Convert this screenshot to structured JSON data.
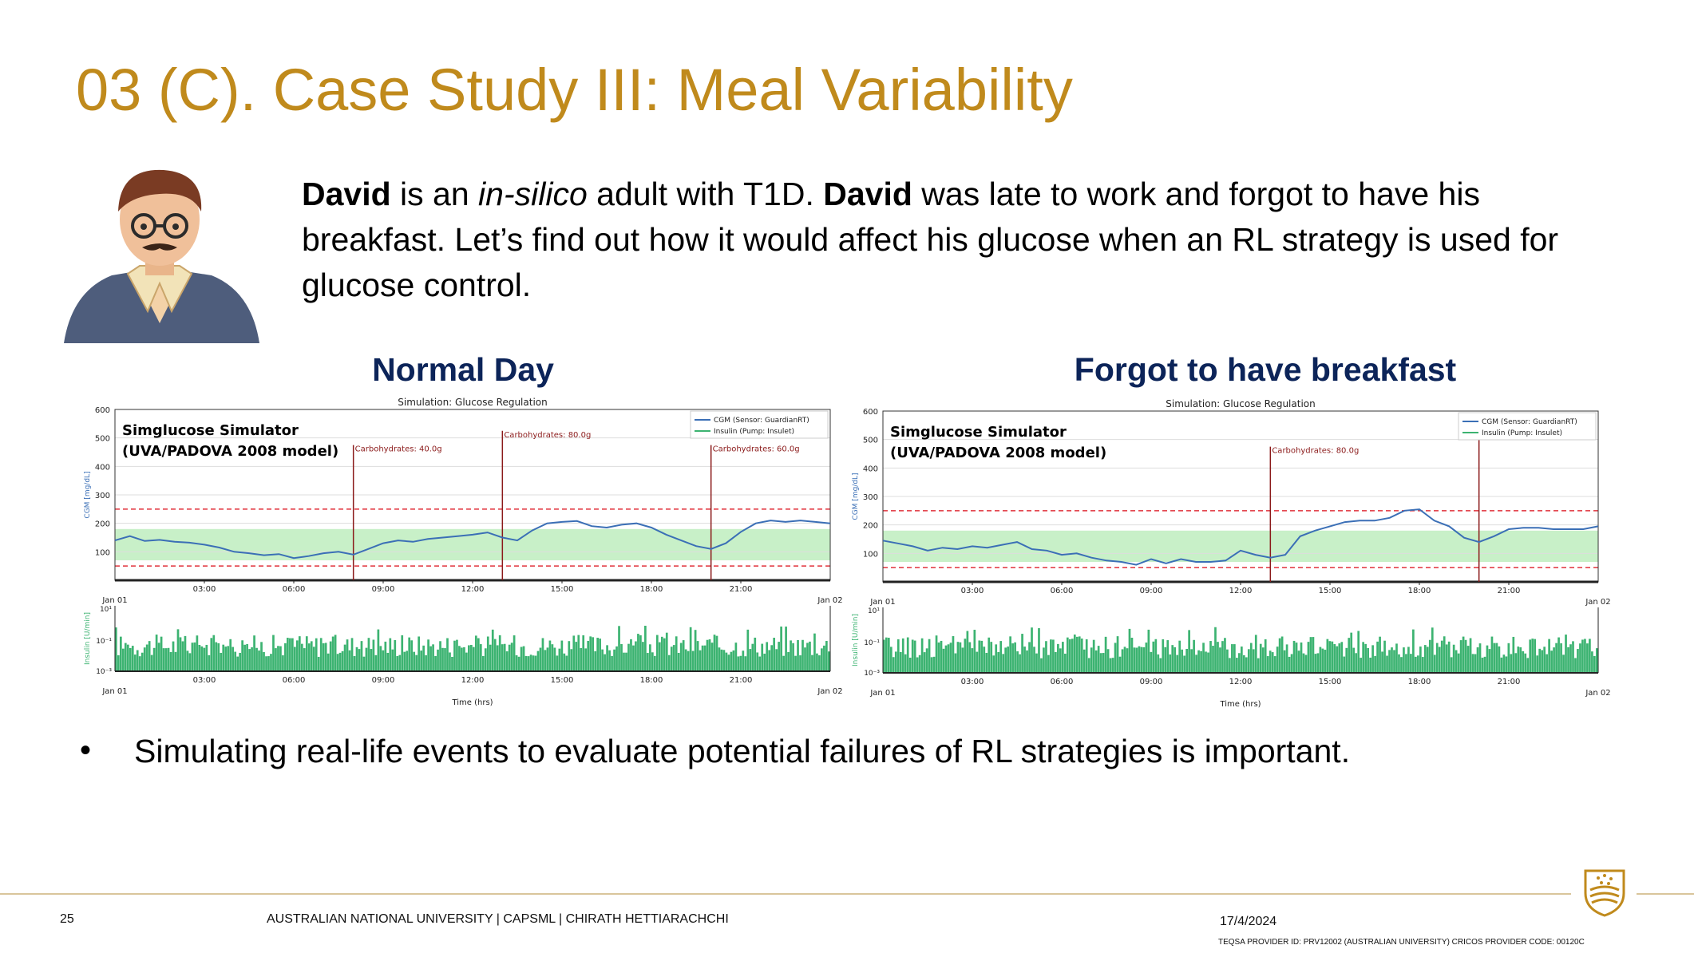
{
  "slide": {
    "title": "03 (C). Case Study III: Meal Variability",
    "intro": {
      "name": "David",
      "p1": " is an ",
      "insilico": "in-silico",
      "p2": " adult with T1D. ",
      "name2": "David",
      "p3": " was late to work and forgot to have his breakfast. Let’s find out how it would affect his glucose when an RL strategy is used for glucose control."
    },
    "heading_left": "Normal Day",
    "heading_right": "Forgot to have breakfast",
    "bullet": "Simulating real-life events to evaluate potential failures of RL strategies is important."
  },
  "footer": {
    "page": "25",
    "text": "AUSTRALIAN NATIONAL UNIVERSITY |   CAPSML   |   CHIRATH HETTIARACHCHI",
    "date": "17/4/2024",
    "teqsa": "TEQSA PROVIDER ID: PRV12002 (AUSTRALIAN UNIVERSITY) CRICOS PROVIDER CODE: 00120C"
  },
  "colors": {
    "title": "#c08a1c",
    "heading": "#0c2459",
    "cgm": "#3b6fb6",
    "insulin": "#3cb371",
    "meal": "#8b1a1a",
    "band": "#c8f0c8",
    "threshold": "#e0303a"
  },
  "chart_data": [
    {
      "type": "line",
      "title": "Simulation: Glucose Regulation",
      "annotation_title": "Simglucose Simulator",
      "annotation_subtitle": "(UVA/PADOVA 2008 model)",
      "ylabel": "CGM [mg/dL]",
      "ylabel2": "Insulin [U/min]",
      "xlabel": "Time (hrs)",
      "ylim": [
        0,
        600
      ],
      "yticks": [
        "100",
        "200",
        "300",
        "400",
        "500",
        "600"
      ],
      "xticks": [
        "03:00",
        "06:00",
        "09:00",
        "12:00",
        "15:00",
        "18:00",
        "21:00"
      ],
      "xstart": "Jan 01",
      "xend": "Jan 02",
      "insulin_ticks": [
        "10¹",
        "10⁻¹",
        "10⁻³"
      ],
      "thresholds": [
        50,
        250
      ],
      "target_range": [
        70,
        180
      ],
      "legend": [
        "CGM (Sensor: GuardianRT)",
        "Insulin (Pump: Insulet)"
      ],
      "legend_position": "top-right",
      "series": [
        {
          "name": "CGM (Sensor: GuardianRT)",
          "x": [
            0,
            0.5,
            1,
            1.5,
            2,
            2.5,
            3,
            3.5,
            4,
            4.5,
            5,
            5.5,
            6,
            6.5,
            7,
            7.5,
            8,
            8.5,
            9,
            9.5,
            10,
            10.5,
            11,
            11.5,
            12,
            12.5,
            13,
            13.5,
            14,
            14.5,
            15,
            15.5,
            16,
            16.5,
            17,
            17.5,
            18,
            18.5,
            19,
            19.5,
            20,
            20.5,
            21,
            21.5,
            22,
            22.5,
            23,
            23.5,
            24
          ],
          "y": [
            140,
            155,
            138,
            142,
            135,
            132,
            125,
            115,
            100,
            95,
            88,
            92,
            78,
            85,
            95,
            100,
            90,
            110,
            130,
            140,
            135,
            145,
            150,
            155,
            160,
            168,
            150,
            140,
            175,
            200,
            205,
            208,
            190,
            185,
            195,
            200,
            185,
            160,
            140,
            120,
            110,
            130,
            170,
            200,
            210,
            205,
            210,
            205,
            200
          ]
        }
      ],
      "meals": [
        {
          "hour": 8,
          "label": "Carbohydrates: 40.0g"
        },
        {
          "hour": 13,
          "label": "Carbohydrates: 80.0g"
        },
        {
          "hour": 20,
          "label": "Carbohydrates: 60.0g"
        }
      ],
      "meal_heights": [
        475,
        525,
        475
      ]
    },
    {
      "type": "line",
      "title": "Simulation: Glucose Regulation",
      "annotation_title": "Simglucose Simulator",
      "annotation_subtitle": "(UVA/PADOVA 2008 model)",
      "ylabel": "CGM [mg/dL]",
      "ylabel2": "Insulin [U/min]",
      "xlabel": "Time (hrs)",
      "ylim": [
        0,
        600
      ],
      "yticks": [
        "100",
        "200",
        "300",
        "400",
        "500",
        "600"
      ],
      "xticks": [
        "03:00",
        "06:00",
        "09:00",
        "12:00",
        "15:00",
        "18:00",
        "21:00"
      ],
      "xstart": "Jan 01",
      "xend": "Jan 02",
      "insulin_ticks": [
        "10¹",
        "10⁻¹",
        "10⁻³"
      ],
      "thresholds": [
        50,
        250
      ],
      "target_range": [
        70,
        180
      ],
      "legend": [
        "CGM (Sensor: GuardianRT)",
        "Insulin (Pump: Insulet)"
      ],
      "legend_position": "top-right",
      "series": [
        {
          "name": "CGM (Sensor: GuardianRT)",
          "x": [
            0,
            0.5,
            1,
            1.5,
            2,
            2.5,
            3,
            3.5,
            4,
            4.5,
            5,
            5.5,
            6,
            6.5,
            7,
            7.5,
            8,
            8.5,
            9,
            9.5,
            10,
            10.5,
            11,
            11.5,
            12,
            12.5,
            13,
            13.5,
            14,
            14.5,
            15,
            15.5,
            16,
            16.5,
            17,
            17.5,
            18,
            18.5,
            19,
            19.5,
            20,
            20.5,
            21,
            21.5,
            22,
            22.5,
            23,
            23.5,
            24
          ],
          "y": [
            145,
            135,
            125,
            110,
            120,
            115,
            125,
            120,
            130,
            140,
            115,
            110,
            95,
            100,
            85,
            75,
            70,
            60,
            80,
            65,
            80,
            70,
            70,
            75,
            110,
            95,
            85,
            95,
            160,
            180,
            195,
            210,
            215,
            215,
            225,
            250,
            255,
            215,
            195,
            155,
            140,
            160,
            185,
            190,
            190,
            185,
            185,
            185,
            195
          ]
        }
      ],
      "meals": [
        {
          "hour": 13,
          "label": "Carbohydrates: 80.0g"
        },
        {
          "hour": 20,
          "label": ""
        }
      ],
      "meal_heights": [
        475,
        505
      ]
    }
  ]
}
